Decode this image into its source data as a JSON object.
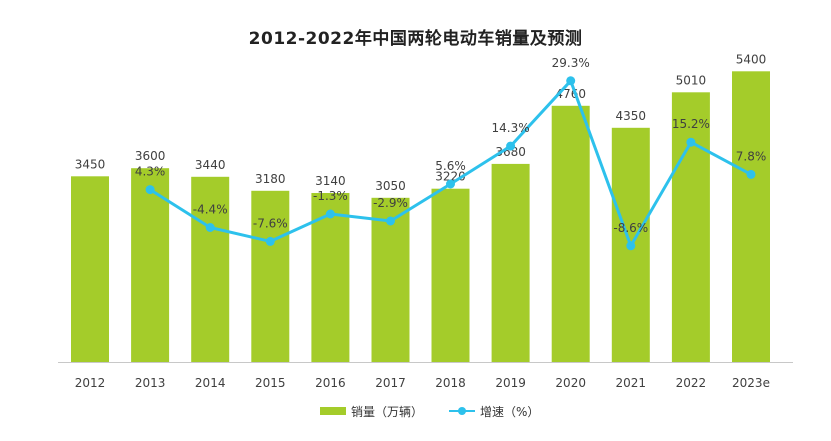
{
  "chart_data": {
    "type": "bar+line",
    "title": "2012-2022年中国两轮电动车销量及预测",
    "categories": [
      "2012",
      "2013",
      "2014",
      "2015",
      "2016",
      "2017",
      "2018",
      "2019",
      "2020",
      "2021",
      "2022",
      "2023e"
    ],
    "series": [
      {
        "name": "销量（万辆）",
        "kind": "bar",
        "values": [
          3450,
          3600,
          3440,
          3180,
          3140,
          3050,
          3220,
          3680,
          4760,
          4350,
          5010,
          5400
        ],
        "labels": [
          "3450",
          "3600",
          "3440",
          "3180",
          "3140",
          "3050",
          "3220",
          "3680",
          "4760",
          "4350",
          "5010",
          "5400"
        ]
      },
      {
        "name": "增速（%）",
        "kind": "line",
        "values": [
          null,
          4.3,
          -4.4,
          -7.6,
          -1.3,
          -2.9,
          5.6,
          14.3,
          29.3,
          -8.6,
          15.2,
          7.8
        ],
        "labels": [
          "",
          "4.3%",
          "-4.4%",
          "-7.6%",
          "-1.3%",
          "-2.9%",
          "5.6%",
          "14.3%",
          "29.3%",
          "-8.6%",
          "15.2%",
          "7.8%"
        ]
      }
    ],
    "bar_ylim": [
      0,
      6000
    ],
    "line_ylim": [
      -50,
      35
    ],
    "legend": [
      {
        "label": "销量（万辆）",
        "type": "bar"
      },
      {
        "label": "增速（%）",
        "type": "line"
      }
    ]
  },
  "colors": {
    "bar": "#a4cc2a",
    "line": "#2dc1ec",
    "axis": "#c8c8c8",
    "text": "#404040"
  }
}
